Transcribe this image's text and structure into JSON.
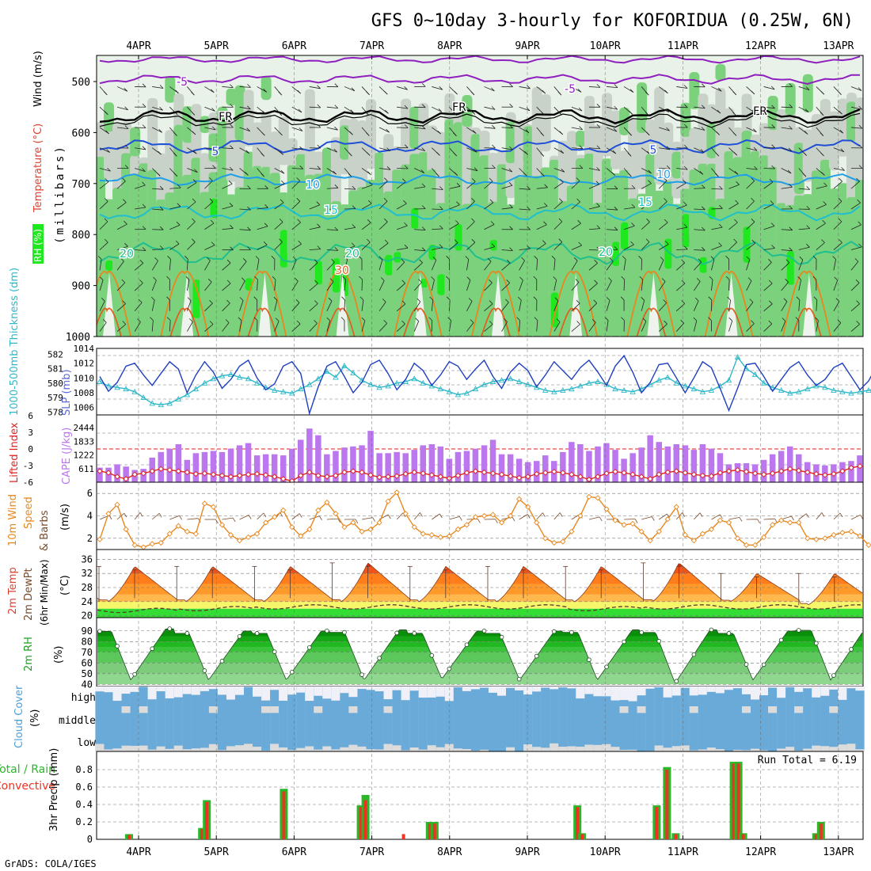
{
  "title": "GFS 0~10day 3-hourly for KOFORIDUA (0.25W, 6N)",
  "credit": "GrADS: COLA/IGES",
  "dates": [
    "4APR",
    "5APR",
    "6APR",
    "7APR",
    "8APR",
    "9APR",
    "10APR",
    "11APR",
    "12APR",
    "13APR"
  ],
  "colors": {
    "rh_light": "#e8f2e8",
    "rh_grey": "#c8d2c8",
    "rh_mid": "#7cd17c",
    "rh_bright": "#1fe81f",
    "temp_m5": "#8f1fbf",
    "temp_fr": "#000000",
    "temp_5": "#1f4fd8",
    "temp_10": "#1f9fe8",
    "temp_15": "#1fbfcf",
    "temp_20": "#1fbf8f",
    "temp_25": "#e8871f",
    "temp_30": "#e0601f",
    "slp": "#1f3fbf",
    "thickness": "#2fb8c8",
    "cape": "#bb77ee",
    "li": "#dd2222",
    "wind": "#e8881f",
    "barb": "#7a4a2a",
    "precip_total": "#2ab82a",
    "precip_conv": "#ee3322",
    "cloud": "#6aaad8",
    "cloud_clear": "#dcdcdc"
  },
  "panels": {
    "upper": {
      "label_wind": "Wind (m/s)",
      "label_temp": "Temperature (°C)",
      "label_rh": "RH (%)",
      "label_mb": "(millibars)",
      "ylevels": [
        "500",
        "600",
        "700",
        "800",
        "900",
        "1000"
      ],
      "contour_labels": [
        "-5",
        "-5",
        "FR",
        "FR",
        "FR",
        "5",
        "5",
        "10",
        "10",
        "15",
        "15",
        "20",
        "20",
        "20",
        "30"
      ]
    },
    "slp": {
      "label_thick": "1000-500mb Thickness (dm)",
      "label_slp": "SLP (mb)",
      "left_ticks": [
        "582",
        "581",
        "580",
        "579",
        "578"
      ],
      "right_ticks": [
        "1014",
        "1012",
        "1010",
        "1008",
        "1006"
      ]
    },
    "cape": {
      "label_li": "Lifted Index",
      "label_cape": "CAPE (J/kg)",
      "left_ticks": [
        "-6",
        "-3",
        "0",
        "3",
        "6"
      ],
      "right_ticks": [
        "2444",
        "1833",
        "1222",
        "611"
      ]
    },
    "wind": {
      "label_a": "10m Wind",
      "label_b": "Speed",
      "label_c": "& Barbs",
      "label_d": "(m/s)",
      "ticks": [
        "6",
        "4",
        "2"
      ]
    },
    "temp": {
      "label_a": "2m Temp",
      "label_b": "2m DewPt",
      "label_c": "(6hr Min/Max)",
      "label_d": "(°C)",
      "ticks": [
        "36",
        "32",
        "28",
        "24",
        "20"
      ]
    },
    "rh": {
      "label_a": "2m RH",
      "label_b": "(%)",
      "ticks": [
        "90",
        "80",
        "70",
        "60",
        "50",
        "40"
      ]
    },
    "cloud": {
      "label_a": "Cloud Cover",
      "label_b": "(%)",
      "layers": [
        "high",
        "middle",
        "low"
      ]
    },
    "precip": {
      "label_a": "Total / Rain",
      "label_b": "Convective",
      "label_c": "3hr Precip (mm)",
      "run_total": "Run Total = 6.19",
      "ticks": [
        "0.8",
        "0.6",
        "0.4",
        "0.2",
        "0"
      ]
    }
  },
  "chart_data": [
    {
      "type": "line",
      "title": "1000-500mb Thickness (dm) and SLP (mb)",
      "series": [
        {
          "name": "SLP (mb)",
          "ylim": [
            1005,
            1014
          ],
          "values": [
            1010.2,
            1008.2,
            1009.4,
            1011.6,
            1012.0,
            1010.4,
            1009.0,
            1010.6,
            1012.2,
            1011.2,
            1008.0,
            1010.4,
            1012.2,
            1010.8,
            1008.6,
            1009.8,
            1011.6,
            1012.4,
            1010.0,
            1008.4,
            1009.2,
            1011.6,
            1012.2,
            1010.6,
            1005.2,
            1008.8,
            1011.6,
            1012.2,
            1010.2,
            1008.0,
            1009.4,
            1011.8,
            1012.4,
            1010.6,
            1008.4,
            1009.8,
            1012.0,
            1011.0,
            1009.0,
            1010.4,
            1012.2,
            1011.6,
            1009.8,
            1011.2,
            1012.4,
            1010.2,
            1008.6,
            1010.8,
            1012.0,
            1011.0,
            1008.8,
            1010.4,
            1012.2,
            1011.0,
            1009.8,
            1011.4,
            1012.4,
            1010.8,
            1009.0,
            1011.6,
            1013.0,
            1010.8,
            1008.0,
            1009.4,
            1011.8,
            1012.0,
            1010.0,
            1008.0,
            1010.0,
            1012.2,
            1011.4,
            1008.6,
            1005.6,
            1008.6,
            1011.8,
            1012.0,
            1010.2,
            1008.2,
            1009.8,
            1011.4,
            1012.2,
            1010.4,
            1009.0,
            1009.8,
            1011.4,
            1012.0,
            1010.2,
            1008.4,
            1009.6,
            1011.8,
            1011.2,
            1010.0,
            1007.8,
            1009.8,
            1011.2,
            1011.0,
            1009.6,
            1010.8
          ]
        },
        {
          "name": "Thickness (dm)",
          "ylim": [
            577.8,
            582.4
          ],
          "values": [
            580.1,
            579.8,
            579.7,
            579.6,
            579.4,
            579.0,
            578.6,
            578.5,
            578.6,
            578.9,
            579.2,
            579.6,
            580.0,
            580.3,
            580.5,
            580.6,
            580.4,
            580.3,
            580.0,
            579.7,
            579.5,
            579.4,
            579.3,
            579.6,
            579.9,
            580.3,
            580.8,
            580.4,
            581.2,
            580.7,
            580.2,
            579.9,
            579.7,
            579.8,
            580.0,
            580.1,
            580.3,
            580.0,
            579.8,
            579.6,
            579.4,
            579.2,
            579.3,
            579.6,
            579.9,
            580.1,
            580.2,
            580.3,
            580.1,
            579.9,
            579.7,
            579.5,
            579.4,
            579.5,
            579.6,
            579.8,
            580.0,
            580.1,
            579.9,
            579.6,
            579.5,
            579.4,
            579.6,
            579.9,
            580.2,
            580.4,
            580.0,
            579.8,
            579.6,
            579.4,
            579.5,
            579.8,
            580.2,
            581.8,
            581.0,
            580.6,
            580.0,
            579.7,
            579.5,
            579.3,
            579.4,
            579.6,
            579.8,
            579.7,
            579.5,
            579.4,
            579.3,
            579.4,
            579.5,
            579.6,
            579.5,
            579.3,
            579.6,
            579.4,
            579.1,
            578.9,
            578.6,
            578.9
          ]
        }
      ]
    },
    {
      "type": "bar",
      "title": "CAPE (J/kg) and Lifted Index",
      "series": [
        {
          "name": "CAPE (J/kg)",
          "ylim": [
            0,
            2444
          ],
          "values": [
            650,
            650,
            800,
            700,
            550,
            600,
            1100,
            1350,
            1500,
            1700,
            1000,
            1300,
            1350,
            1400,
            1350,
            1500,
            1650,
            1750,
            1200,
            1250,
            1250,
            1200,
            1500,
            1900,
            2400,
            2100,
            1250,
            1400,
            1550,
            1600,
            1650,
            2300,
            1300,
            1300,
            1350,
            1300,
            1450,
            1650,
            1700,
            1600,
            1050,
            1350,
            1400,
            1500,
            1650,
            1900,
            1250,
            1250,
            1050,
            900,
            950,
            1200,
            950,
            1350,
            1800,
            1700,
            1400,
            1600,
            1750,
            1450,
            1050,
            1300,
            1550,
            2100,
            1800,
            1600,
            1700,
            1650,
            1450,
            1700,
            1500,
            1300,
            800,
            850,
            850,
            800,
            1000,
            1250,
            1400,
            1600,
            1250,
            900,
            800,
            750,
            800,
            900,
            950,
            1200,
            650,
            950,
            1050,
            1100,
            1050,
            1000
          ]
        },
        {
          "name": "Lifted Index",
          "ylim": [
            6,
            -6
          ],
          "values": [
            -4.0,
            -4.3,
            -5.0,
            -5.4,
            -4.6,
            -4.4,
            -4.0,
            -3.6,
            -3.8,
            -4.0,
            -4.2,
            -4.5,
            -4.4,
            -4.6,
            -4.8,
            -5.0,
            -4.8,
            -4.6,
            -4.5,
            -4.7,
            -5.0,
            -5.4,
            -5.8,
            -4.8,
            -4.2,
            -4.8,
            -5.0,
            -4.8,
            -4.2,
            -4.0,
            -4.2,
            -4.7,
            -5.1,
            -5.0,
            -4.9,
            -4.5,
            -4.2,
            -4.4,
            -4.7,
            -5.0,
            -5.3,
            -4.8,
            -4.3,
            -4.0,
            -4.2,
            -4.4,
            -4.6,
            -4.9,
            -5.2,
            -5.0,
            -4.5,
            -4.3,
            -4.1,
            -4.3,
            -4.6,
            -5.0,
            -5.5,
            -5.0,
            -4.4,
            -4.1,
            -4.3,
            -4.6,
            -5.0,
            -5.4,
            -4.6,
            -4.2,
            -4.0,
            -4.3,
            -4.6,
            -4.8,
            -4.9,
            -4.3,
            -4.0,
            -3.8,
            -4.1,
            -4.4,
            -4.6,
            -4.4,
            -4.0,
            -3.6,
            -3.9,
            -4.2,
            -4.5,
            -4.7,
            -4.5,
            -4.0,
            -3.4,
            -3.1,
            -3.4,
            -3.7,
            -3.8,
            -3.4,
            -2.6,
            -2.2,
            -2.4,
            -2.6,
            -2.5,
            -2.5
          ]
        }
      ]
    },
    {
      "type": "line",
      "title": "10m Wind Speed & Barbs (m/s)",
      "ylim": [
        1,
        7
      ],
      "values": [
        1.9,
        4.2,
        5.0,
        2.8,
        1.4,
        1.2,
        1.5,
        1.6,
        2.4,
        3.1,
        2.6,
        2.4,
        5.1,
        4.8,
        3.2,
        2.3,
        1.8,
        2.1,
        2.4,
        3.4,
        3.9,
        4.5,
        3.0,
        2.2,
        2.8,
        4.5,
        5.2,
        4.2,
        3.0,
        3.4,
        2.6,
        2.8,
        3.4,
        5.3,
        6.1,
        4.2,
        3.0,
        2.4,
        2.3,
        2.1,
        2.2,
        2.8,
        3.2,
        3.9,
        4.0,
        4.1,
        3.4,
        4.0,
        5.5,
        4.8,
        3.4,
        2.0,
        1.6,
        1.7,
        2.6,
        4.0,
        5.7,
        5.6,
        4.6,
        3.6,
        3.2,
        3.3,
        2.6,
        1.8,
        2.6,
        3.7,
        4.8,
        2.3,
        1.8,
        2.4,
        2.8,
        3.6,
        3.4,
        2.0,
        1.4,
        1.4,
        2.1,
        3.2,
        3.6,
        3.4,
        3.4,
        2.0,
        1.9,
        2.0,
        2.3,
        2.5,
        2.6,
        2.2,
        1.4,
        1.4
      ]
    },
    {
      "type": "area",
      "title": "2m Temp / 2m DewPt (6hr Min/Max) (°C)",
      "ylim": [
        19,
        37
      ],
      "days": [
        "4APR",
        "5APR",
        "6APR",
        "7APR",
        "8APR",
        "9APR",
        "10APR",
        "11APR",
        "12APR",
        "13APR"
      ],
      "daily_max": [
        34,
        34,
        34,
        35,
        34,
        34,
        34,
        35,
        32,
        32
      ],
      "daily_min": [
        24,
        24,
        24,
        24,
        24,
        24,
        24,
        24,
        24,
        23
      ],
      "dewpoint": [
        21.5,
        22.0,
        22.5,
        22.5,
        22.5,
        22.5,
        22.0,
        22.5,
        22.5,
        22.5
      ]
    },
    {
      "type": "area",
      "title": "2m RH (%)",
      "ylim": [
        38,
        95
      ],
      "days": [
        "4APR",
        "5APR",
        "6APR",
        "7APR",
        "8APR",
        "9APR",
        "10APR",
        "11APR",
        "12APR",
        "13APR"
      ],
      "daily_max": [
        92,
        90,
        90,
        91,
        90,
        90,
        91,
        91,
        90,
        93
      ],
      "daily_min": [
        44,
        44,
        44,
        44,
        45,
        44,
        44,
        41,
        44,
        44
      ]
    },
    {
      "type": "bar",
      "title": "3hr Precip (mm)",
      "ylim": [
        0,
        1.0
      ],
      "events": [
        {
          "date": "4APR",
          "total": 0.06,
          "conv": 0.05
        },
        {
          "date": "5APR",
          "total": 0.13,
          "conv": 0.12
        },
        {
          "date": "5APR",
          "total": 0.45,
          "conv": 0.43
        },
        {
          "date": "6APR",
          "total": 0.58,
          "conv": 0.55
        },
        {
          "date": "7APR",
          "total": 0.39,
          "conv": 0.37
        },
        {
          "date": "7APR",
          "total": 0.51,
          "conv": 0.45
        },
        {
          "date": "7APR",
          "total": 0.0,
          "conv": 0.06
        },
        {
          "date": "8APR",
          "total": 0.2,
          "conv": 0.18
        },
        {
          "date": "8APR",
          "total": 0.2,
          "conv": 0.18
        },
        {
          "date": "10APR",
          "total": 0.39,
          "conv": 0.37
        },
        {
          "date": "10APR",
          "total": 0.07,
          "conv": 0.06
        },
        {
          "date": "11APR",
          "total": 0.39,
          "conv": 0.37
        },
        {
          "date": "11APR",
          "total": 0.83,
          "conv": 0.8
        },
        {
          "date": "11APR",
          "total": 0.07,
          "conv": 0.06
        },
        {
          "date": "12APR",
          "total": 0.89,
          "conv": 0.87
        },
        {
          "date": "12APR",
          "total": 0.89,
          "conv": 0.87
        },
        {
          "date": "12APR",
          "total": 0.07,
          "conv": 0.06
        },
        {
          "date": "13APR",
          "total": 0.07,
          "conv": 0.06
        },
        {
          "date": "13APR",
          "total": 0.2,
          "conv": 0.18
        }
      ]
    }
  ]
}
